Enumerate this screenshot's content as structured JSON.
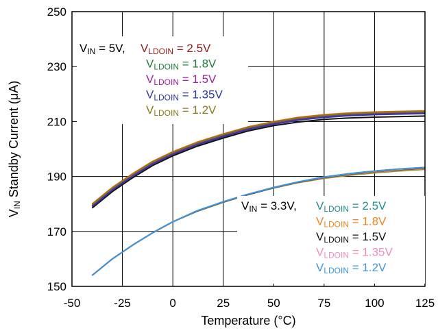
{
  "chart_data": {
    "type": "line",
    "title": "",
    "xlabel": "Temperature (°C)",
    "ylabel": {
      "prefix": "V",
      "sub": "IN",
      "rest": " Standby Current (μA)"
    },
    "xlim": [
      -50,
      125
    ],
    "ylim": [
      150,
      250
    ],
    "xticks": [
      -50,
      -25,
      0,
      25,
      50,
      75,
      100,
      125
    ],
    "yticks": [
      150,
      170,
      190,
      210,
      230,
      250
    ],
    "grid": true,
    "legend": "annotations",
    "groups": [
      {
        "header": {
          "prefix": "V",
          "sub": "IN",
          "rest": " = 5V, "
        },
        "series": [
          {
            "name": "2.5V",
            "color": "#8B1A1A",
            "x": [
              -40,
              -30,
              -20,
              -10,
              0,
              12,
              25,
              37,
              50,
              62,
              75,
              87,
              100,
              112,
              125
            ],
            "y": [
              179.5,
              185.5,
              190.5,
              195,
              198.5,
              202,
              205,
              207.5,
              209.5,
              211,
              212,
              212.6,
              213,
              213.2,
              213.4
            ]
          },
          {
            "name": "1.8V",
            "color": "#1E7B3C",
            "x": [
              -40,
              -30,
              -20,
              -10,
              0,
              12,
              25,
              37,
              50,
              62,
              75,
              87,
              100,
              112,
              125
            ],
            "y": [
              179.3,
              185.3,
              190.3,
              194.8,
              198.3,
              201.8,
              204.8,
              207.3,
              209.3,
              210.8,
              211.8,
              212.4,
              212.8,
              213,
              213.2
            ]
          },
          {
            "name": "1.5V",
            "color": "#A020A0",
            "x": [
              -40,
              -30,
              -20,
              -10,
              0,
              12,
              25,
              37,
              50,
              62,
              75,
              87,
              100,
              112,
              125
            ],
            "y": [
              179.2,
              185.2,
              190.2,
              194.7,
              198.2,
              201.7,
              204.7,
              207.2,
              209.2,
              210.7,
              211.7,
              212.3,
              212.7,
              212.9,
              213.1
            ]
          },
          {
            "name": "1.35V",
            "color": "#2E3A9E",
            "x": [
              -40,
              -30,
              -20,
              -10,
              0,
              12,
              25,
              37,
              50,
              62,
              75,
              87,
              100,
              112,
              125
            ],
            "y": [
              179,
              185,
              190,
              194.5,
              198,
              201.5,
              204.5,
              207,
              209,
              210.5,
              211.5,
              212.1,
              212.5,
              212.7,
              212.9
            ]
          },
          {
            "name": "1.2V",
            "color": "#8A7A1A",
            "x": [
              -40,
              -30,
              -20,
              -10,
              0,
              12,
              25,
              37,
              50,
              62,
              75,
              87,
              100,
              112,
              125
            ],
            "y": [
              179.8,
              185.8,
              190.8,
              195.3,
              198.8,
              202.3,
              205.3,
              207.8,
              209.8,
              211.3,
              212.3,
              212.9,
              213.3,
              213.5,
              213.7
            ]
          }
        ],
        "extra_series": [
          {
            "color": "#E8620C",
            "x": [
              -40,
              -30,
              -20,
              -10,
              0,
              12,
              25,
              37,
              50,
              62,
              75,
              87,
              100,
              112,
              125
            ],
            "y": [
              180,
              186,
              191,
              195.5,
              199,
              202.5,
              205.5,
              208,
              210,
              211.5,
              212.5,
              213.1,
              213.5,
              213.7,
              213.9
            ]
          },
          {
            "color": "#111111",
            "x": [
              -40,
              -30,
              -20,
              -10,
              0,
              12,
              25,
              37,
              50,
              62,
              75,
              87,
              100,
              112,
              125
            ],
            "y": [
              178.5,
              184.5,
              189.5,
              194,
              197.5,
              201,
              204,
              206.5,
              208.5,
              209.8,
              210.8,
              211.3,
              211.6,
              211.8,
              212
            ]
          }
        ]
      },
      {
        "header": {
          "prefix": "V",
          "sub": "IN",
          "rest": " = 3.3V, "
        },
        "series": [
          {
            "name": "2.5V",
            "color": "#1E8C8C",
            "x": [
              -40,
              -30,
              -20,
              -10,
              0,
              12,
              25,
              37,
              50,
              62,
              75,
              87,
              100,
              112,
              125
            ],
            "y": [
              154,
              160,
              165,
              169.5,
              173.5,
              177.5,
              180.8,
              183.5,
              186,
              188,
              189.8,
              191,
              192,
              192.7,
              193.3
            ]
          },
          {
            "name": "1.8V",
            "color": "#F0871E",
            "x": [
              -40,
              -30,
              -20,
              -10,
              0,
              12,
              25,
              37,
              50,
              62,
              75,
              87,
              100,
              112,
              125
            ],
            "y": [
              154,
              160,
              165,
              169.5,
              173.5,
              177.4,
              180.7,
              183.4,
              185.9,
              187.8,
              189.5,
              190.7,
              191.6,
              192.3,
              192.9
            ]
          },
          {
            "name": "1.5V",
            "color": "#111111",
            "x": [
              -40,
              -30,
              -20,
              -10,
              0,
              12,
              25,
              37,
              50,
              62,
              75,
              87,
              100,
              112,
              125
            ],
            "y": [
              154,
              160,
              165,
              169.5,
              173.5,
              177.4,
              180.7,
              183.4,
              185.9,
              187.9,
              189.6,
              190.8,
              191.8,
              192.5,
              193.1
            ]
          },
          {
            "name": "1.35V",
            "color": "#F08CC0",
            "x": [
              -40,
              -30,
              -20,
              -10,
              0,
              12,
              25,
              37,
              50,
              62,
              75,
              87,
              100,
              112,
              125
            ],
            "y": [
              154,
              160,
              165,
              169.5,
              173.5,
              177.5,
              180.8,
              183.5,
              186,
              188,
              189.7,
              190.9,
              191.9,
              192.6,
              193.2
            ]
          },
          {
            "name": "1.2V",
            "color": "#3C96DC",
            "x": [
              -40,
              -30,
              -20,
              -10,
              0,
              12,
              25,
              37,
              50,
              62,
              75,
              87,
              100,
              112,
              125
            ],
            "y": [
              154,
              160,
              165,
              169.5,
              173.5,
              177.5,
              180.8,
              183.5,
              186,
              188,
              189.8,
              191,
              192,
              192.7,
              193.3
            ]
          }
        ],
        "extra_series": [
          {
            "color": "#8A9A3A",
            "x": [
              -40,
              -30,
              -20,
              -10,
              0,
              12,
              25,
              37,
              50,
              62,
              75,
              87,
              100,
              112,
              125
            ],
            "y": [
              154,
              160,
              165,
              169.5,
              173.5,
              177.3,
              180.6,
              183.3,
              185.8,
              187.7,
              189.3,
              190.4,
              191.3,
              192,
              192.6
            ]
          }
        ]
      }
    ],
    "label_prefix": {
      "prefix": "V",
      "sub": "LDOIN"
    }
  }
}
